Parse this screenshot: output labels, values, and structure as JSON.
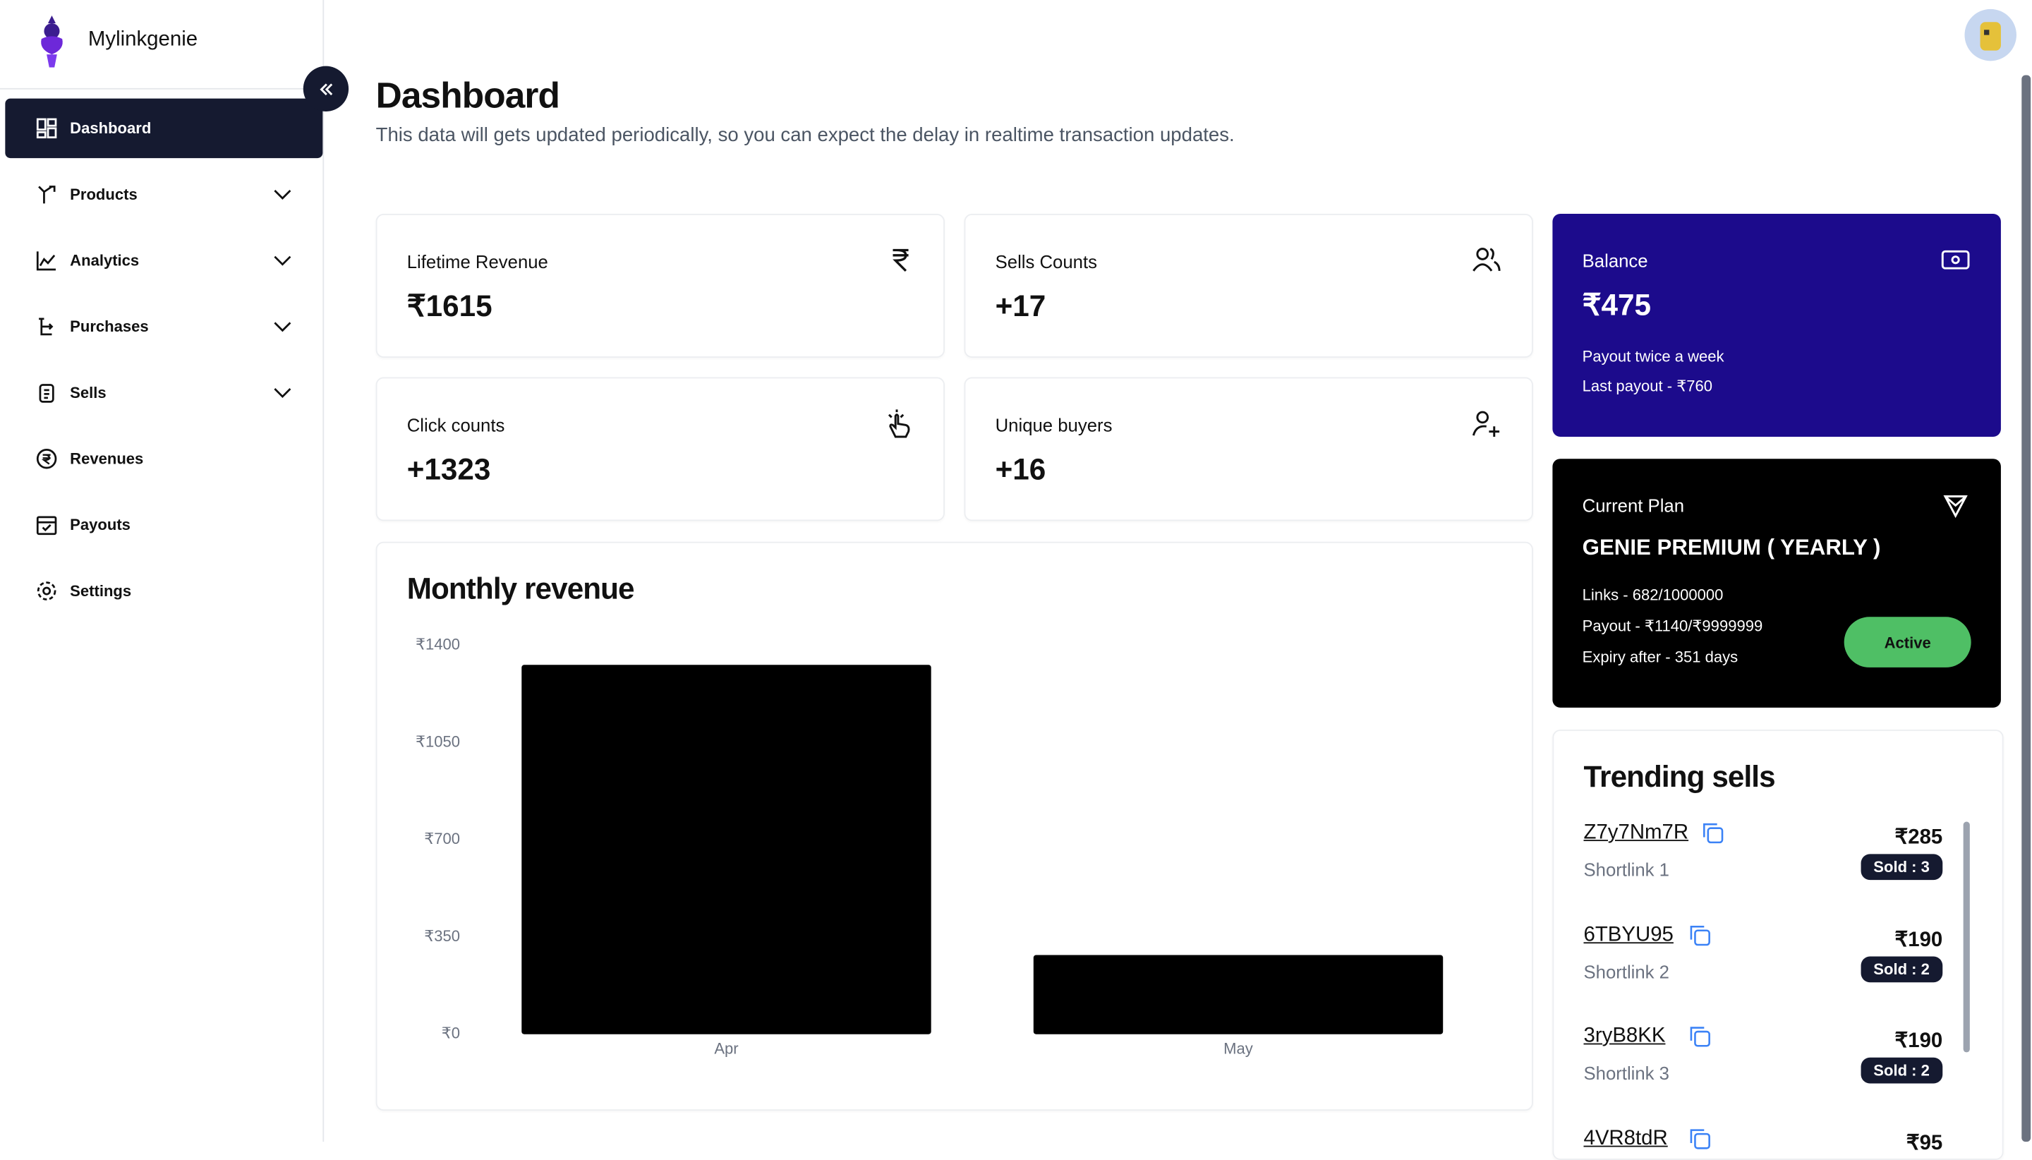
{
  "sidebar": {
    "brand": "Mylinkgenie",
    "items": [
      {
        "label": "Dashboard",
        "active": true,
        "expandable": false
      },
      {
        "label": "Products",
        "expandable": true
      },
      {
        "label": "Analytics",
        "expandable": true
      },
      {
        "label": "Purchases",
        "expandable": true
      },
      {
        "label": "Sells",
        "expandable": true
      },
      {
        "label": "Revenues",
        "expandable": false
      },
      {
        "label": "Payouts",
        "expandable": false
      },
      {
        "label": "Settings",
        "expandable": false
      }
    ]
  },
  "header": {
    "title": "Dashboard",
    "subtitle": "This data will gets updated periodically, so you can expect the delay in realtime transaction updates."
  },
  "stats": [
    {
      "label": "Lifetime Revenue",
      "value": "₹1615"
    },
    {
      "label": "Sells Counts",
      "value": "+17"
    },
    {
      "label": "Click counts",
      "value": "+1323"
    },
    {
      "label": "Unique buyers",
      "value": "+16"
    }
  ],
  "balance": {
    "label": "Balance",
    "value": "₹475",
    "notes": [
      "Payout twice a week",
      "Last payout - ₹760"
    ]
  },
  "plan": {
    "label": "Current Plan",
    "name": "GENIE PREMIUM ( YEARLY )",
    "details": [
      "Links - 682/1000000",
      "Payout - ₹1140/₹9999999",
      "Expiry after - 351 days"
    ],
    "status": "Active"
  },
  "trending": {
    "title": "Trending sells",
    "items": [
      {
        "code": "Z7y7Nm7R",
        "name": "Shortlink 1",
        "price": "₹285",
        "sold": "Sold : 3"
      },
      {
        "code": "6TBYU95",
        "name": "Shortlink 2",
        "price": "₹190",
        "sold": "Sold : 2"
      },
      {
        "code": "3ryB8KK",
        "name": "Shortlink 3",
        "price": "₹190",
        "sold": "Sold : 2"
      },
      {
        "code": "4VR8tdR",
        "price": "₹95"
      }
    ]
  },
  "chart_data": {
    "type": "bar",
    "title": "Monthly revenue",
    "categories": [
      "Apr",
      "May"
    ],
    "values": [
      1330,
      285
    ],
    "color": "#000000",
    "ylim": [
      0,
      1400
    ],
    "yticks": [
      {
        "value": 0,
        "label": "₹0"
      },
      {
        "value": 350,
        "label": "₹350"
      },
      {
        "value": 700,
        "label": "₹700"
      },
      {
        "value": 1050,
        "label": "₹1050"
      },
      {
        "value": 1400,
        "label": "₹1400"
      }
    ],
    "grid": false
  }
}
